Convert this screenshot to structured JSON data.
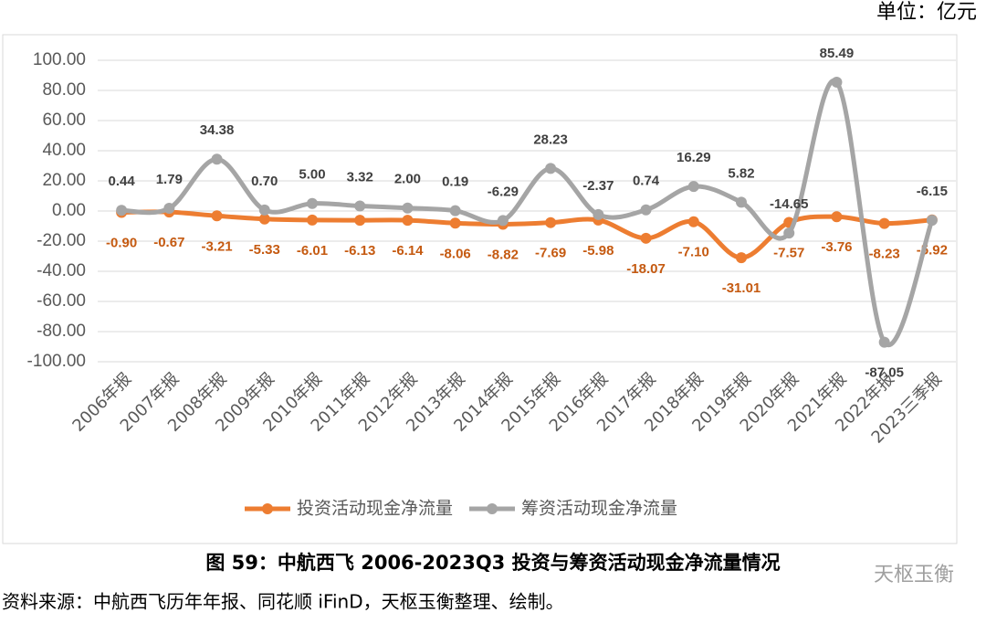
{
  "unit_label": "单位：亿元",
  "caption": "图 59：中航西飞 2006-2023Q3 投资与筹资活动现金净流量情况",
  "source": "资料来源：中航西飞历年年报、同花顺 iFinD，天枢玉衡整理、绘制。",
  "watermark": "天枢玉衡",
  "chart_data": {
    "type": "line",
    "smooth": true,
    "legend": "bottom",
    "categories": [
      "2006年报",
      "2007年报",
      "2008年报",
      "2009年报",
      "2010年报",
      "2011年报",
      "2012年报",
      "2013年报",
      "2014年报",
      "2015年报",
      "2016年报",
      "2017年报",
      "2018年报",
      "2019年报",
      "2020年报",
      "2021年报",
      "2022年报",
      "2023三季报"
    ],
    "series": [
      {
        "name": "投资活动现金净流量",
        "color": "#ED7D31",
        "values": [
          -0.9,
          -0.67,
          -3.21,
          -5.33,
          -6.01,
          -6.13,
          -6.14,
          -8.06,
          -8.82,
          -7.69,
          -5.98,
          -18.07,
          -7.1,
          -31.01,
          -7.57,
          -3.76,
          -8.23,
          -5.92
        ],
        "value_labels": [
          "-0.90",
          "-0.67",
          "-3.21",
          "-5.33",
          "-6.01",
          "-6.13",
          "-6.14",
          "-8.06",
          "-8.82",
          "-7.69",
          "-5.98",
          "-18.07",
          "-7.10",
          "-31.01",
          "-7.57",
          "-3.76",
          "-8.23",
          "-5.92"
        ]
      },
      {
        "name": "筹资活动现金净流量",
        "color": "#A5A5A5",
        "values": [
          0.44,
          1.79,
          34.38,
          0.7,
          5,
          3.32,
          2,
          0.19,
          -6.29,
          28.23,
          -2.37,
          0.74,
          16.29,
          5.82,
          -14.65,
          85.49,
          -87.05,
          -6.15
        ],
        "value_labels": [
          "0.44",
          "1.79",
          "34.38",
          "0.70",
          "5.00",
          "3.32",
          "2.00",
          "0.19",
          "-6.29",
          "28.23",
          "-2.37",
          "0.74",
          "16.29",
          "5.82",
          "-14.65",
          "85.49",
          "-87.05",
          "-6.15"
        ]
      }
    ],
    "ylim": [
      -100,
      100
    ],
    "yticks": [
      {
        "value": -100,
        "label": "-100.00"
      },
      {
        "value": -80,
        "label": "-80.00"
      },
      {
        "value": -60,
        "label": "-60.00"
      },
      {
        "value": -40,
        "label": "-40.00"
      },
      {
        "value": -20,
        "label": "-20.00"
      },
      {
        "value": 0,
        "label": "0.00"
      },
      {
        "value": 20,
        "label": "20.00"
      },
      {
        "value": 40,
        "label": "40.00"
      },
      {
        "value": 60,
        "label": "60.00"
      },
      {
        "value": 80,
        "label": "80.00"
      },
      {
        "value": 100,
        "label": "100.00"
      }
    ],
    "grid": true
  }
}
